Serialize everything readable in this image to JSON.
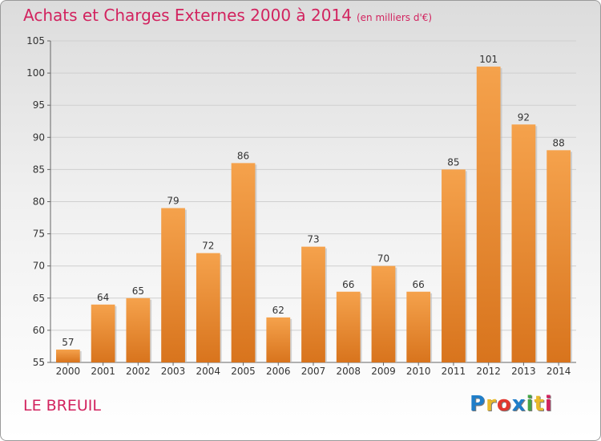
{
  "header": {
    "title": "Achats et Charges Externes 2000 à 2014",
    "subtitle": "(en milliers d'€)"
  },
  "footer": {
    "city": "LE BREUIL",
    "logo": [
      "P",
      "r",
      "o",
      "x",
      "i",
      "t",
      "i"
    ],
    "logo_colors": [
      "#1f7ec9",
      "#e8b92a",
      "#e2372f",
      "#1f7ec9",
      "#45a546",
      "#e8b92a",
      "#d2235f"
    ]
  },
  "chart_data": {
    "type": "bar",
    "title": "Achats et Charges Externes 2000 à 2014",
    "subtitle": "(en milliers d'€)",
    "categories": [
      "2000",
      "2001",
      "2002",
      "2003",
      "2004",
      "2005",
      "2006",
      "2007",
      "2008",
      "2009",
      "2010",
      "2011",
      "2012",
      "2013",
      "2014"
    ],
    "values": [
      57,
      64,
      65,
      79,
      72,
      86,
      62,
      73,
      66,
      70,
      66,
      85,
      101,
      92,
      88
    ],
    "ylim": [
      55,
      105
    ],
    "yticks": [
      55,
      60,
      65,
      70,
      75,
      80,
      85,
      90,
      95,
      100,
      105
    ],
    "grid": true,
    "bar_color_top": "#f5a24c",
    "bar_color_bottom": "#d8741d"
  }
}
